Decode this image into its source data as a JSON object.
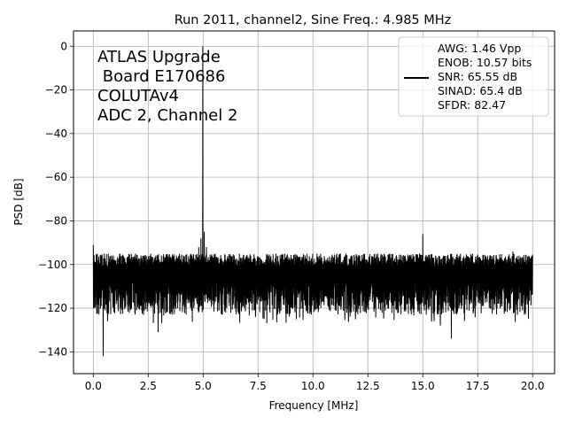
{
  "chart_data": {
    "type": "line",
    "title": "Run 2011, channel2, Sine Freq.: 4.985 MHz",
    "xlabel": "Frequency [MHz]",
    "ylabel": "PSD [dB]",
    "xlim": [
      -0.9,
      21.0
    ],
    "ylim": [
      -150,
      7
    ],
    "xticks": [
      0.0,
      2.5,
      5.0,
      7.5,
      10.0,
      12.5,
      15.0,
      17.5,
      20.0
    ],
    "xtick_labels": [
      "0.0",
      "2.5",
      "5.0",
      "7.5",
      "10.0",
      "12.5",
      "15.0",
      "17.5",
      "20.0"
    ],
    "yticks": [
      0,
      -20,
      -40,
      -60,
      -80,
      -100,
      -120,
      -140
    ],
    "ytick_labels": [
      "0",
      "−20",
      "−40",
      "−60",
      "−80",
      "−100",
      "−120",
      "−140"
    ],
    "grid": true,
    "legend_placement": "top-right",
    "annotation": [
      "ATLAS Upgrade",
      " Board E170686",
      "COLUTAv4",
      "ADC 2, Channel 2"
    ],
    "legend": [
      "AWG: 1.46 Vpp",
      "ENOB: 10.57 bits",
      "SNR: 65.55 dB",
      "SINAD: 65.4 dB",
      "SFDR: 82.47"
    ],
    "series": [
      {
        "color": "#000000",
        "noise_floor_db": -106,
        "noise_upper_db": -95,
        "noise_lower_db": -121,
        "x_range": [
          0.0,
          20.0
        ],
        "features": [
          {
            "x": 0.0,
            "y": -91
          },
          {
            "x": 0.45,
            "y": -142
          },
          {
            "x": 0.65,
            "y": -126
          },
          {
            "x": 4.8,
            "y": -92
          },
          {
            "x": 4.9,
            "y": -88
          },
          {
            "x": 4.985,
            "y": 0
          },
          {
            "x": 5.05,
            "y": -85
          },
          {
            "x": 5.15,
            "y": -92
          },
          {
            "x": 2.95,
            "y": -131
          },
          {
            "x": 15.0,
            "y": -86
          },
          {
            "x": 14.85,
            "y": -95
          },
          {
            "x": 15.8,
            "y": -128
          },
          {
            "x": 16.3,
            "y": -134
          },
          {
            "x": 19.1,
            "y": -94
          }
        ]
      }
    ]
  }
}
